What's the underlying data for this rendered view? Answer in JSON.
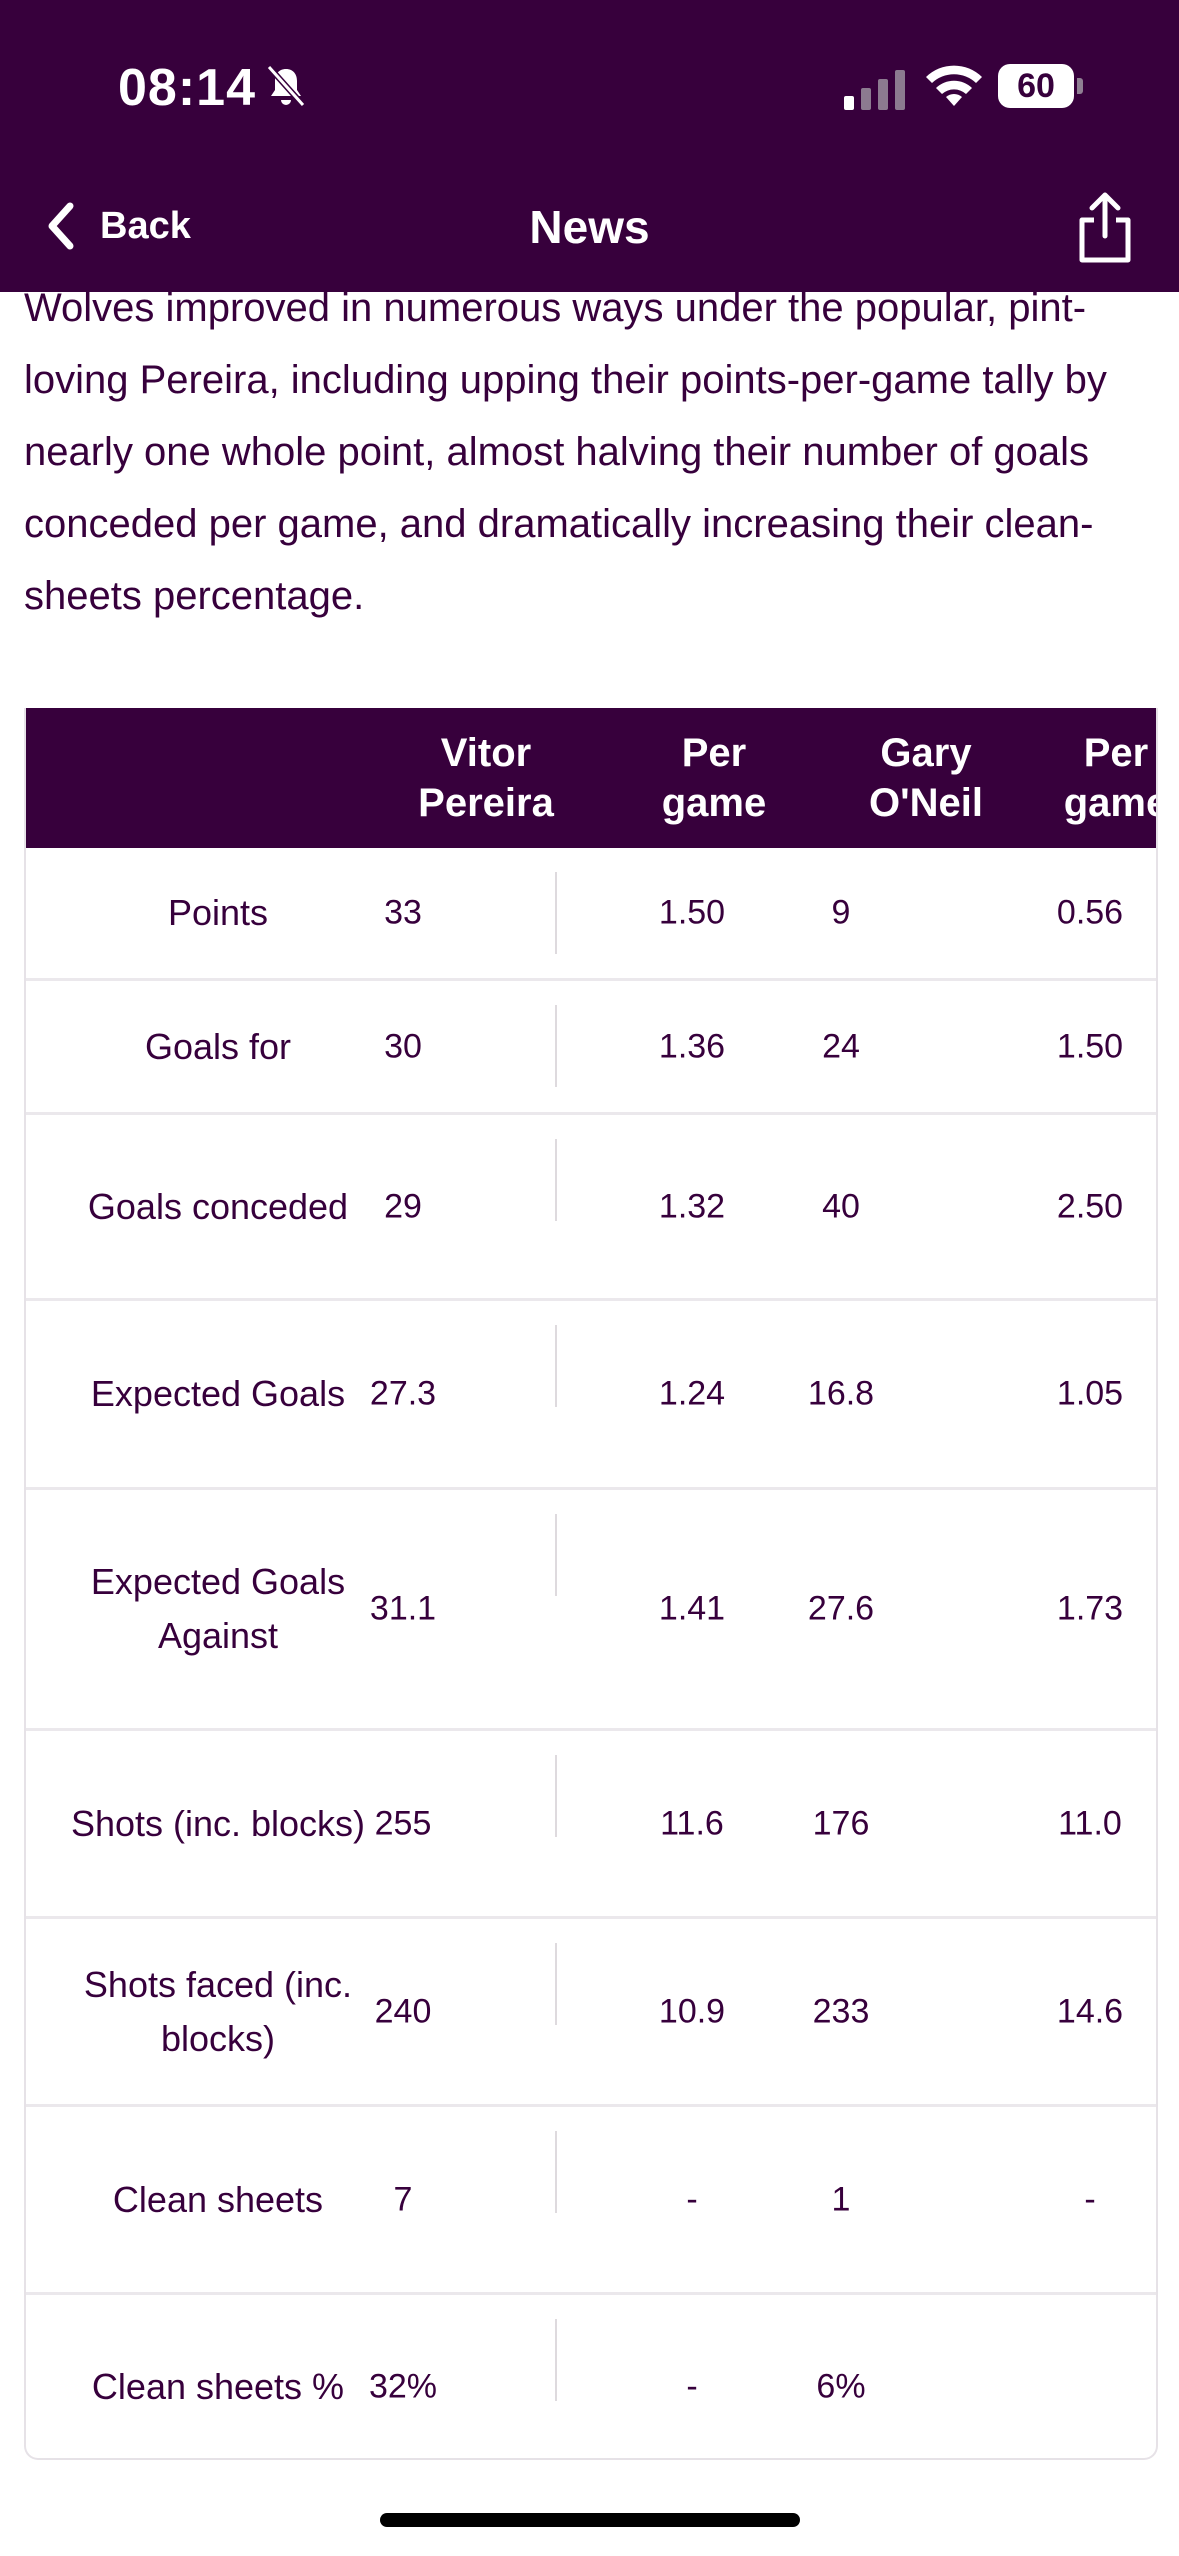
{
  "status_bar": {
    "time": "08:14",
    "battery": "60"
  },
  "nav": {
    "back_label": "Back",
    "title": "News"
  },
  "article": {
    "paragraph": "Wolves improved in numerous ways under the popular, pint-loving Pereira, including upping their points-per-game tally by nearly one whole point, almost halving their number of goals conceded per game, and dramatically increasing their clean-sheets percentage."
  },
  "table": {
    "headers": [
      "",
      "Vitor\nPereira",
      "Per\ngame",
      "Gary\nO'Neil",
      "Per\ngame"
    ],
    "rows": [
      {
        "label": "Points",
        "vp": "33",
        "vp_pg": "1.50",
        "go": "9",
        "go_pg": "0.56"
      },
      {
        "label": "Goals for",
        "vp": "30",
        "vp_pg": "1.36",
        "go": "24",
        "go_pg": "1.50"
      },
      {
        "label": "Goals conceded",
        "vp": "29",
        "vp_pg": "1.32",
        "go": "40",
        "go_pg": "2.50"
      },
      {
        "label": "Expected Goals",
        "vp": "27.3",
        "vp_pg": "1.24",
        "go": "16.8",
        "go_pg": "1.05"
      },
      {
        "label": "Expected Goals Against",
        "vp": "31.1",
        "vp_pg": "1.41",
        "go": "27.6",
        "go_pg": "1.73"
      },
      {
        "label": "Shots (inc. blocks)",
        "vp": "255",
        "vp_pg": "11.6",
        "go": "176",
        "go_pg": "11.0"
      },
      {
        "label": "Shots faced (inc. blocks)",
        "vp": "240",
        "vp_pg": "10.9",
        "go": "233",
        "go_pg": "14.6"
      },
      {
        "label": "Clean sheets",
        "vp": "7",
        "vp_pg": "-",
        "go": "1",
        "go_pg": "-"
      },
      {
        "label": "Clean sheets %",
        "vp": "32%",
        "vp_pg": "-",
        "go": "6%",
        "go_pg": ""
      }
    ]
  },
  "colors": {
    "brand": "#37003c",
    "row_divider": "#ebe8ec"
  }
}
